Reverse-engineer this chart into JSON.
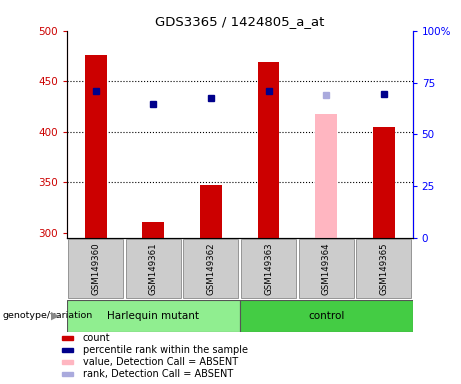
{
  "title": "GDS3365 / 1424805_a_at",
  "samples": [
    "GSM149360",
    "GSM149361",
    "GSM149362",
    "GSM149363",
    "GSM149364",
    "GSM149365"
  ],
  "count_values": [
    476,
    311,
    347,
    469,
    null,
    405
  ],
  "count_absent_values": [
    null,
    null,
    null,
    null,
    418,
    null
  ],
  "percentile_values": [
    440,
    428,
    433,
    440,
    null,
    437
  ],
  "percentile_absent_values": [
    null,
    null,
    null,
    null,
    436,
    null
  ],
  "ylim_left": [
    295,
    500
  ],
  "ylim_right": [
    0,
    100
  ],
  "yticks_left": [
    300,
    350,
    400,
    450,
    500
  ],
  "yticks_right": [
    0,
    25,
    50,
    75,
    100
  ],
  "ytick_labels_right": [
    "0",
    "25",
    "50",
    "75",
    "100%"
  ],
  "hline_values": [
    350,
    400,
    450
  ],
  "count_color": "#CC0000",
  "count_absent_color": "#FFB6C1",
  "percentile_color": "#00008B",
  "percentile_absent_color": "#AAAADD",
  "group_area_bg_harlequin": "#90EE90",
  "group_area_bg_control": "#44CC44",
  "legend_items": [
    {
      "label": "count",
      "color": "#CC0000"
    },
    {
      "label": "percentile rank within the sample",
      "color": "#00008B"
    },
    {
      "label": "value, Detection Call = ABSENT",
      "color": "#FFB6C1"
    },
    {
      "label": "rank, Detection Call = ABSENT",
      "color": "#AAAADD"
    }
  ]
}
